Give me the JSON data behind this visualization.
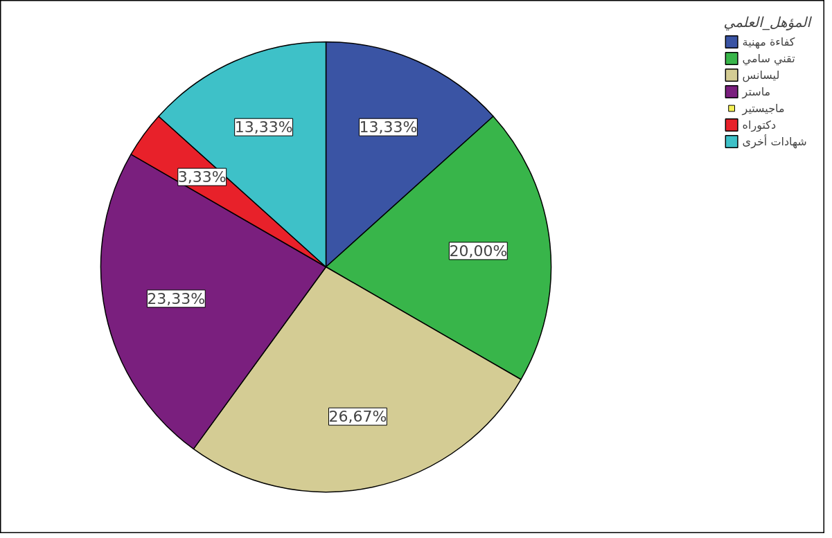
{
  "chart_data": {
    "type": "pie",
    "legend_title": "المؤهل_العلمي",
    "categories": [
      "كفاءة مهنية",
      "تقني سامي",
      "ليسانس",
      "ماستر",
      "ماجيستير",
      "دكتوراه",
      "شهادات أخرى"
    ],
    "values": [
      13.33,
      20.0,
      26.67,
      23.33,
      0,
      3.33,
      13.33
    ],
    "colors": [
      "#3a54a4",
      "#38b54a",
      "#d4cc94",
      "#7a1f7e",
      "#f4f055",
      "#e8212a",
      "#3ec1c8"
    ],
    "value_labels": [
      "13,33%",
      "20,00%",
      "26,67%",
      "23,33%",
      null,
      "3,33%",
      "13,33%"
    ],
    "legend": "top right"
  }
}
